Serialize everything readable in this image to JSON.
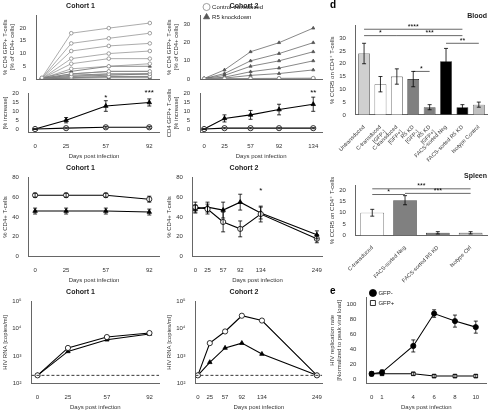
{
  "chart_data": [
    {
      "type": "line",
      "title": "Cohort 1",
      "ylabel": "% CD4 GFP+ T-cells\n[% of CD4+ cells]",
      "x": [
        0,
        25,
        57,
        92
      ],
      "series": [
        {
          "color": "#888888",
          "marker": "circle-open",
          "values": [
            [
              0.5,
              18,
              20,
              22
            ],
            [
              0.3,
              14,
              16,
              18
            ],
            [
              0.3,
              11,
              13,
              14
            ],
            [
              0.2,
              8,
              10,
              11
            ],
            [
              0.2,
              6,
              8,
              8
            ],
            [
              0.2,
              4,
              5,
              6
            ],
            [
              0.1,
              2,
              3,
              3
            ],
            [
              0.1,
              1,
              2,
              2
            ],
            [
              0.1,
              0.5,
              1,
              1
            ]
          ]
        },
        {
          "color": "#555555",
          "marker": "triangle",
          "values": [
            [
              0.4,
              3,
              5,
              5
            ],
            [
              0.3,
              2,
              3,
              3
            ],
            [
              0.2,
              1.5,
              2,
              2
            ],
            [
              0.2,
              1,
              1.5,
              2
            ],
            [
              0.1,
              0.5,
              1,
              1
            ],
            [
              0.1,
              0.3,
              0.5,
              0.5
            ]
          ]
        }
      ],
      "xlim": [
        -5,
        100
      ],
      "ylim": [
        0,
        25
      ],
      "xticks": [
        0,
        25,
        57,
        92
      ],
      "yticks": [
        0,
        5,
        10,
        15,
        20
      ],
      "tick_labels": "y",
      "grid": false
    },
    {
      "type": "line",
      "xlabel": "Days post infection",
      "ylabel": "[% increase]",
      "x": [
        0,
        25,
        57,
        92
      ],
      "series": [
        {
          "color": "#000000",
          "marker": "circle-open",
          "values": [
            0,
            0.5,
            1,
            1
          ],
          "errors": [
            0,
            0.3,
            0.5,
            0.5
          ]
        },
        {
          "color": "#000000",
          "marker": "triangle",
          "values": [
            0,
            5,
            13,
            15
          ],
          "errors": [
            0,
            1.5,
            3,
            2
          ]
        }
      ],
      "xlim": [
        -5,
        100
      ],
      "ylim": [
        -2,
        20
      ],
      "xticks": [
        0,
        25,
        57,
        92
      ],
      "yticks": [
        0,
        5,
        10,
        15,
        20
      ],
      "grid": false,
      "annotations": [
        {
          "x": 57,
          "y": 15.5,
          "text": "*"
        },
        {
          "x": 92,
          "y": 18,
          "text": "***"
        }
      ]
    },
    {
      "type": "line",
      "title": "Cohort 2",
      "ylabel": "% CD4 GFP+ T-cells\n[% of CD4+ cells]",
      "x": [
        0,
        25,
        57,
        92,
        134
      ],
      "series": [
        {
          "name": "Control-transduced",
          "color": "#888888",
          "marker": "circle-open",
          "values": [
            [
              0.1,
              0.2,
              0.3,
              0.4,
              0.5
            ],
            [
              0.1,
              0.2,
              0.2,
              0.3,
              0.3
            ],
            [
              0.05,
              0.1,
              0.15,
              0.2,
              0.2
            ]
          ]
        },
        {
          "name": "R5 knockdown",
          "color": "#555555",
          "marker": "triangle",
          "values": [
            [
              0.3,
              5,
              15,
              20,
              28
            ],
            [
              0.2,
              3,
              10,
              14,
              20
            ],
            [
              0.2,
              2,
              7,
              10,
              15
            ],
            [
              0.1,
              1,
              4,
              6,
              10
            ],
            [
              0.1,
              0.5,
              2,
              3,
              5
            ]
          ]
        }
      ],
      "xlim": [
        -5,
        145
      ],
      "ylim": [
        0,
        35
      ],
      "xticks": [
        0,
        25,
        57,
        92,
        134
      ],
      "yticks": [
        0,
        10,
        20,
        30
      ],
      "tick_labels": "y",
      "grid": false,
      "legend": "upper left"
    },
    {
      "type": "line",
      "xlabel": "Days post infection",
      "ylabel": "CD4 GFP+ T-cells\n[% increase]",
      "x": [
        0,
        25,
        57,
        92,
        134
      ],
      "series": [
        {
          "color": "#000000",
          "marker": "circle-open",
          "values": [
            0,
            0.5,
            0.5,
            0.5,
            0.5
          ],
          "errors": [
            0,
            0.3,
            0.3,
            0.3,
            0.3
          ]
        },
        {
          "color": "#000000",
          "marker": "triangle",
          "values": [
            0,
            6,
            8,
            11,
            14
          ],
          "errors": [
            0,
            2,
            2.5,
            3,
            4
          ]
        }
      ],
      "xlim": [
        -5,
        145
      ],
      "ylim": [
        -2,
        20
      ],
      "xticks": [
        0,
        25,
        57,
        92,
        134
      ],
      "yticks": [
        0,
        5,
        10,
        15,
        20
      ],
      "grid": false,
      "annotations": [
        {
          "x": 134,
          "y": 18,
          "text": "**"
        }
      ]
    },
    {
      "type": "line",
      "title": "Cohort 1",
      "xlabel": "Days post infection",
      "ylabel": "% CD4+ T-cells",
      "x": [
        0,
        25,
        57,
        92
      ],
      "series": [
        {
          "color": "#000000",
          "marker": "circle-open",
          "values": [
            62,
            62,
            62,
            58
          ],
          "errors": [
            2,
            2,
            2,
            3
          ]
        },
        {
          "color": "#000000",
          "marker": "triangle",
          "values": [
            46,
            46,
            46,
            45
          ],
          "errors": [
            3,
            3,
            3,
            3
          ]
        }
      ],
      "xlim": [
        -5,
        100
      ],
      "ylim": [
        0,
        80
      ],
      "xticks": [
        0,
        25,
        57,
        92
      ],
      "yticks": [
        0,
        20,
        40,
        60,
        80
      ],
      "grid": false
    },
    {
      "type": "line",
      "title": "Cohort 2",
      "xlabel": "Days post infection",
      "ylabel": "% CD4+ T-cells",
      "x": [
        0,
        25,
        57,
        92,
        134,
        249
      ],
      "series": [
        {
          "color": "#000000",
          "marker": "circle-open",
          "values": [
            50,
            48,
            35,
            28,
            43,
            18
          ],
          "errors": [
            5,
            5,
            10,
            8,
            8,
            4
          ]
        },
        {
          "color": "#000000",
          "marker": "triangle",
          "values": [
            48,
            50,
            47,
            55,
            44,
            22
          ],
          "errors": [
            4,
            5,
            8,
            8,
            6,
            4
          ]
        }
      ],
      "xlim": [
        -5,
        260
      ],
      "ylim": [
        0,
        80
      ],
      "xticks": [
        0,
        25,
        57,
        92,
        134,
        249
      ],
      "yticks": [
        0,
        20,
        40,
        60,
        80
      ],
      "grid": false,
      "annotations": [
        {
          "x": 134,
          "y": 62,
          "text": "*"
        }
      ]
    },
    {
      "type": "line",
      "title": "Cohort 1",
      "xlabel": "Days post infection",
      "ylabel": "HIV RNA [copies/ml]",
      "x": [
        0,
        25,
        57,
        92
      ],
      "series": [
        {
          "color": "#000000",
          "marker": "circle-open",
          "values": [
            200,
            2000,
            5000,
            7000
          ]
        },
        {
          "color": "#000000",
          "marker": "triangle",
          "values": [
            200,
            1500,
            4000,
            6500
          ]
        }
      ],
      "log": "y",
      "xlim": [
        -5,
        100
      ],
      "ylim": [
        100,
        100000
      ],
      "xticks": [
        0,
        25,
        57,
        92
      ],
      "yticks": [
        {
          "value": 100,
          "label": "10²"
        },
        {
          "value": 1000,
          "label": "10³"
        },
        {
          "value": 10000,
          "label": "10⁴"
        },
        {
          "value": 100000,
          "label": "10⁵"
        }
      ],
      "grid": false,
      "hlines": [
        {
          "value": 200,
          "line_style": "dashed"
        }
      ]
    },
    {
      "type": "line",
      "title": "Cohort 2",
      "xlabel": "Days post infection",
      "ylabel": "HIV RNA [copies/ml]",
      "x": [
        0,
        25,
        57,
        92,
        134,
        249
      ],
      "series": [
        {
          "color": "#000000",
          "marker": "circle-open",
          "values": [
            200,
            3000,
            8000,
            30000,
            20000,
            200
          ]
        },
        {
          "color": "#000000",
          "marker": "triangle",
          "values": [
            200,
            600,
            2000,
            3000,
            1200,
            200
          ]
        }
      ],
      "log": "y",
      "xlim": [
        -5,
        260
      ],
      "ylim": [
        100,
        100000
      ],
      "xticks": [
        0,
        25,
        57,
        92,
        134,
        249
      ],
      "yticks": [
        {
          "value": 100,
          "label": "10²"
        },
        {
          "value": 1000,
          "label": "10³"
        },
        {
          "value": 10000,
          "label": "10⁴"
        },
        {
          "value": 100000,
          "label": "10⁵"
        }
      ],
      "grid": false,
      "hlines": [
        {
          "value": 200,
          "line_style": "dashed"
        }
      ]
    },
    {
      "type": "bar",
      "title": "Blood",
      "panel_label": "d",
      "ylabel": "% CCR5 on CD4⁺ T-cells",
      "categories": [
        "Untransduced",
        "C-transduced\n[GFP-]",
        "C-transduced\n[GFP+]",
        "R5 KD\n[GFP-]",
        "R5 KD\n[GFP+]",
        "FACS-sorted Neg",
        "FACS-sorted R5 KD",
        "Isotype Control"
      ],
      "values": [
        24,
        12,
        15,
        14,
        3,
        21,
        3,
        4
      ],
      "errors": [
        4,
        3,
        3,
        3,
        1,
        5,
        1,
        1
      ],
      "colors": [
        "#d0d0d0",
        "#ffffff",
        "#ffffff",
        "#808080",
        "#808080",
        "#000000",
        "#000000",
        "#c0c0c0"
      ],
      "ylim": [
        0,
        35
      ],
      "yticks": [
        0,
        5,
        10,
        15,
        20,
        25,
        30
      ],
      "grid": false,
      "brackets": [
        {
          "from": "Untransduced",
          "to": "C-transduced\n[GFP+]",
          "y": 31,
          "text": "*"
        },
        {
          "from": "Untransduced",
          "to": "FACS-sorted R5 KD",
          "y": 33.5,
          "text": "****"
        },
        {
          "from": "C-transduced\n[GFP+]",
          "to": "FACS-sorted R5 KD",
          "y": 31,
          "text": "***"
        },
        {
          "from": "R5 KD\n[GFP-]",
          "to": "R5 KD\n[GFP+]",
          "y": 17,
          "text": "*"
        },
        {
          "from": "FACS-sorted Neg",
          "to": "Isotype Control",
          "y": 28,
          "text": "**"
        }
      ]
    },
    {
      "type": "bar",
      "title": "Spleen",
      "ylabel": "% CCR5 on CD4⁺ T-cells",
      "categories": [
        "C-transduced",
        "FACS-sorted Neg",
        "FACS-sorted R5 KD",
        "Isotype Ctrl"
      ],
      "values": [
        10,
        15.5,
        1.2,
        1.2
      ],
      "errors": [
        1.5,
        2,
        0.5,
        0.5
      ],
      "colors": [
        "#ffffff",
        "#808080",
        "#808080",
        "#c0c0c0"
      ],
      "ylim": [
        0,
        22
      ],
      "yticks": [
        0,
        5,
        10,
        15,
        20
      ],
      "grid": false,
      "brackets": [
        {
          "from": "C-transduced",
          "to": "FACS-sorted Neg",
          "y": 18,
          "text": "*"
        },
        {
          "from": "C-transduced",
          "to": "Isotype Ctrl",
          "y": 20.5,
          "text": "***"
        },
        {
          "from": "FACS-sorted Neg",
          "to": "Isotype Ctrl",
          "y": 18.5,
          "text": "***"
        }
      ]
    },
    {
      "type": "line",
      "panel_label": "e",
      "xlabel": "Days post infection",
      "ylabel": "HIV replication rate\n[Normalized to peak viral load]",
      "x": [
        0,
        1,
        4,
        6,
        8,
        10
      ],
      "series": [
        {
          "name": "GFP-",
          "color": "#000000",
          "marker": "circle",
          "values": [
            8,
            10,
            45,
            88,
            78,
            70
          ],
          "errors": [
            3,
            3,
            8,
            5,
            8,
            8
          ]
        },
        {
          "name": "GFP+",
          "color": "#000000",
          "marker": "square-open",
          "values": [
            8,
            8,
            8,
            5,
            5,
            5
          ],
          "errors": [
            2,
            2,
            2,
            2,
            2,
            2
          ]
        }
      ],
      "xlim": [
        -0.5,
        11
      ],
      "ylim": [
        -5,
        110
      ],
      "xticks": [
        0,
        1,
        4,
        6,
        8,
        10
      ],
      "yticks": [
        0,
        20,
        40,
        60,
        80,
        100
      ],
      "grid": false,
      "legend": "upper left"
    }
  ]
}
